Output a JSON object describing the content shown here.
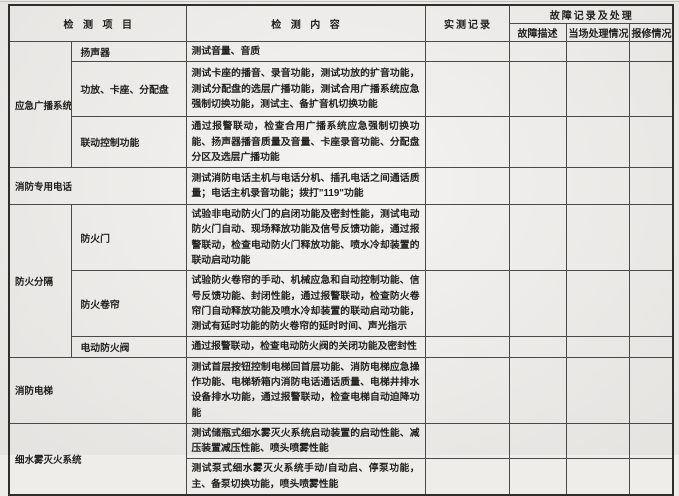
{
  "colors": {
    "paper": "#efedea",
    "ink": "#1f1f1f",
    "line": "#4a4a4a"
  },
  "header": {
    "project": "检测项目",
    "content": "检测内容",
    "record": "实测记录",
    "fault_group": "故障记录及处理",
    "fault_desc": "故障描述",
    "onsite": "当场处理情况",
    "repair": "报修情况"
  },
  "sections": [
    {
      "category": "应急广播系统",
      "items": [
        {
          "label": "扬声器",
          "content": "测试音量、音质"
        },
        {
          "label": "功放、卡座、分配盘",
          "content": "测试卡座的播音、录音功能，测试功放的扩音功能，测试分配盘的选层广播功能，测试合用广播系统应急强制切换功能，测试主、备扩音机切换功能"
        },
        {
          "label": "联动控制功能",
          "content": "通过报警联动，检查合用广播系统应急强制切换功能、扬声器播音质量及音量、卡座录音功能、分配盘分区及选层广播功能"
        }
      ]
    },
    {
      "category": "消防专用电话",
      "content": "测试消防电话主机与电话分机、插孔电话之间通话质量；电话主机录音功能；拨打\"119\"功能"
    },
    {
      "category": "防火分隔",
      "items": [
        {
          "label": "防火门",
          "content": "试验非电动防火门的启闭功能及密封性能，测试电动防火门自动、现场释放功能及信号反馈功能，通过报警联动，检查电动防火门释放功能、喷水冷却装置的联动启动功能"
        },
        {
          "label": "防火卷帘",
          "content": "试验防火卷帘的手动、机械应急和自动控制功能、信号反馈功能、封闭性能，通过报警联动，检查防火卷帘门自动释放功能及喷水冷却装置的联动启动功能，测试有延时功能的防火卷帘的延时时间、声光指示"
        },
        {
          "label": "电动防火阀",
          "content": "通过报警联动，检查电动防火阀的关闭功能及密封性"
        }
      ]
    },
    {
      "category": "消防电梯",
      "content": "测试首层按钮控制电梯回首层功能、消防电梯应急操作功能、电梯轿箱内消防电话通话质量、电梯井排水设备排水功能，通过报警联动，检查电梯自动迫降功能"
    },
    {
      "category": "细水雾灭火系统",
      "items": [
        {
          "content": "测试储瓶式细水雾灭火系统启动装置的启动性能、减压装置减压性能、喷头喷雾性能"
        },
        {
          "content": "测试泵式细水雾灭火系统手动/自动启、停泵功能，主、备泵切换功能，喷头喷雾性能"
        }
      ]
    }
  ]
}
